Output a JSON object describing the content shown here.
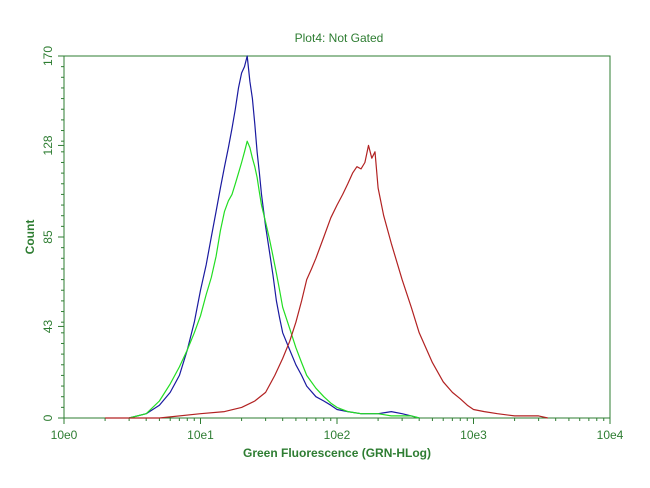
{
  "chart_data": {
    "type": "line",
    "title": "Plot4:  Not Gated",
    "xlabel": "Green Fluorescence (GRN-HLog)",
    "ylabel": "Count",
    "x_scale": "log",
    "xlim": [
      1,
      10000
    ],
    "ylim": [
      0,
      170
    ],
    "x_ticks": [
      {
        "value": 1,
        "label": "10e0"
      },
      {
        "value": 10,
        "label": "10e1"
      },
      {
        "value": 100,
        "label": "10e2"
      },
      {
        "value": 1000,
        "label": "10e3"
      },
      {
        "value": 10000,
        "label": "10e4"
      }
    ],
    "y_ticks": [
      {
        "value": 0,
        "label": "0"
      },
      {
        "value": 43,
        "label": "43"
      },
      {
        "value": 85,
        "label": "85"
      },
      {
        "value": 128,
        "label": "128"
      },
      {
        "value": 170,
        "label": "170"
      }
    ],
    "grid": false,
    "legend": "none",
    "series": [
      {
        "color": "#1a1aa0",
        "x": [
          3,
          4,
          5,
          6,
          7,
          8,
          9,
          10,
          11,
          12,
          13,
          14,
          15,
          16,
          17,
          18,
          19,
          20,
          21,
          22,
          23,
          24,
          25,
          26,
          27,
          28,
          30,
          32,
          34,
          36,
          38,
          40,
          45,
          50,
          55,
          60,
          70,
          80,
          90,
          100,
          120,
          150,
          200,
          250,
          300,
          350,
          400
        ],
        "y": [
          0,
          2,
          6,
          12,
          20,
          32,
          45,
          60,
          72,
          85,
          97,
          108,
          118,
          127,
          136,
          145,
          155,
          162,
          165,
          170,
          158,
          150,
          138,
          125,
          115,
          105,
          90,
          78,
          67,
          55,
          47,
          40,
          32,
          25,
          20,
          15,
          10,
          8,
          6,
          4,
          3,
          2,
          2,
          3,
          2,
          1,
          0
        ]
      },
      {
        "color": "#22dd22",
        "x": [
          3,
          4,
          5,
          6,
          7,
          8,
          9,
          10,
          11,
          12,
          13,
          14,
          15,
          16,
          17,
          18,
          19,
          20,
          21,
          22,
          23,
          24,
          25,
          26,
          27,
          28,
          30,
          32,
          34,
          36,
          38,
          40,
          45,
          50,
          55,
          60,
          70,
          80,
          90,
          100,
          120,
          150,
          200,
          250,
          300,
          350,
          400
        ],
        "y": [
          0,
          2,
          8,
          16,
          24,
          32,
          40,
          48,
          58,
          66,
          76,
          88,
          97,
          102,
          105,
          110,
          115,
          120,
          125,
          130,
          127,
          122,
          118,
          113,
          106,
          100,
          92,
          84,
          76,
          68,
          60,
          52,
          42,
          33,
          26,
          20,
          14,
          10,
          7,
          5,
          3,
          2,
          2,
          1,
          1,
          1,
          0
        ]
      },
      {
        "color": "#b22222",
        "x": [
          2,
          5,
          10,
          15,
          20,
          25,
          30,
          35,
          40,
          45,
          50,
          55,
          60,
          65,
          70,
          80,
          90,
          100,
          110,
          120,
          130,
          140,
          150,
          160,
          170,
          180,
          190,
          200,
          220,
          250,
          300,
          350,
          400,
          500,
          600,
          700,
          800,
          900,
          1000,
          1200,
          1500,
          2000,
          2500,
          3000,
          3500
        ],
        "y": [
          0,
          0,
          2,
          3,
          5,
          8,
          12,
          20,
          28,
          36,
          45,
          55,
          65,
          70,
          75,
          85,
          94,
          100,
          105,
          110,
          115,
          118,
          117,
          120,
          128,
          122,
          125,
          108,
          95,
          82,
          65,
          52,
          40,
          26,
          17,
          12,
          9,
          6,
          4,
          3,
          2,
          1,
          1,
          1,
          0
        ]
      }
    ]
  }
}
